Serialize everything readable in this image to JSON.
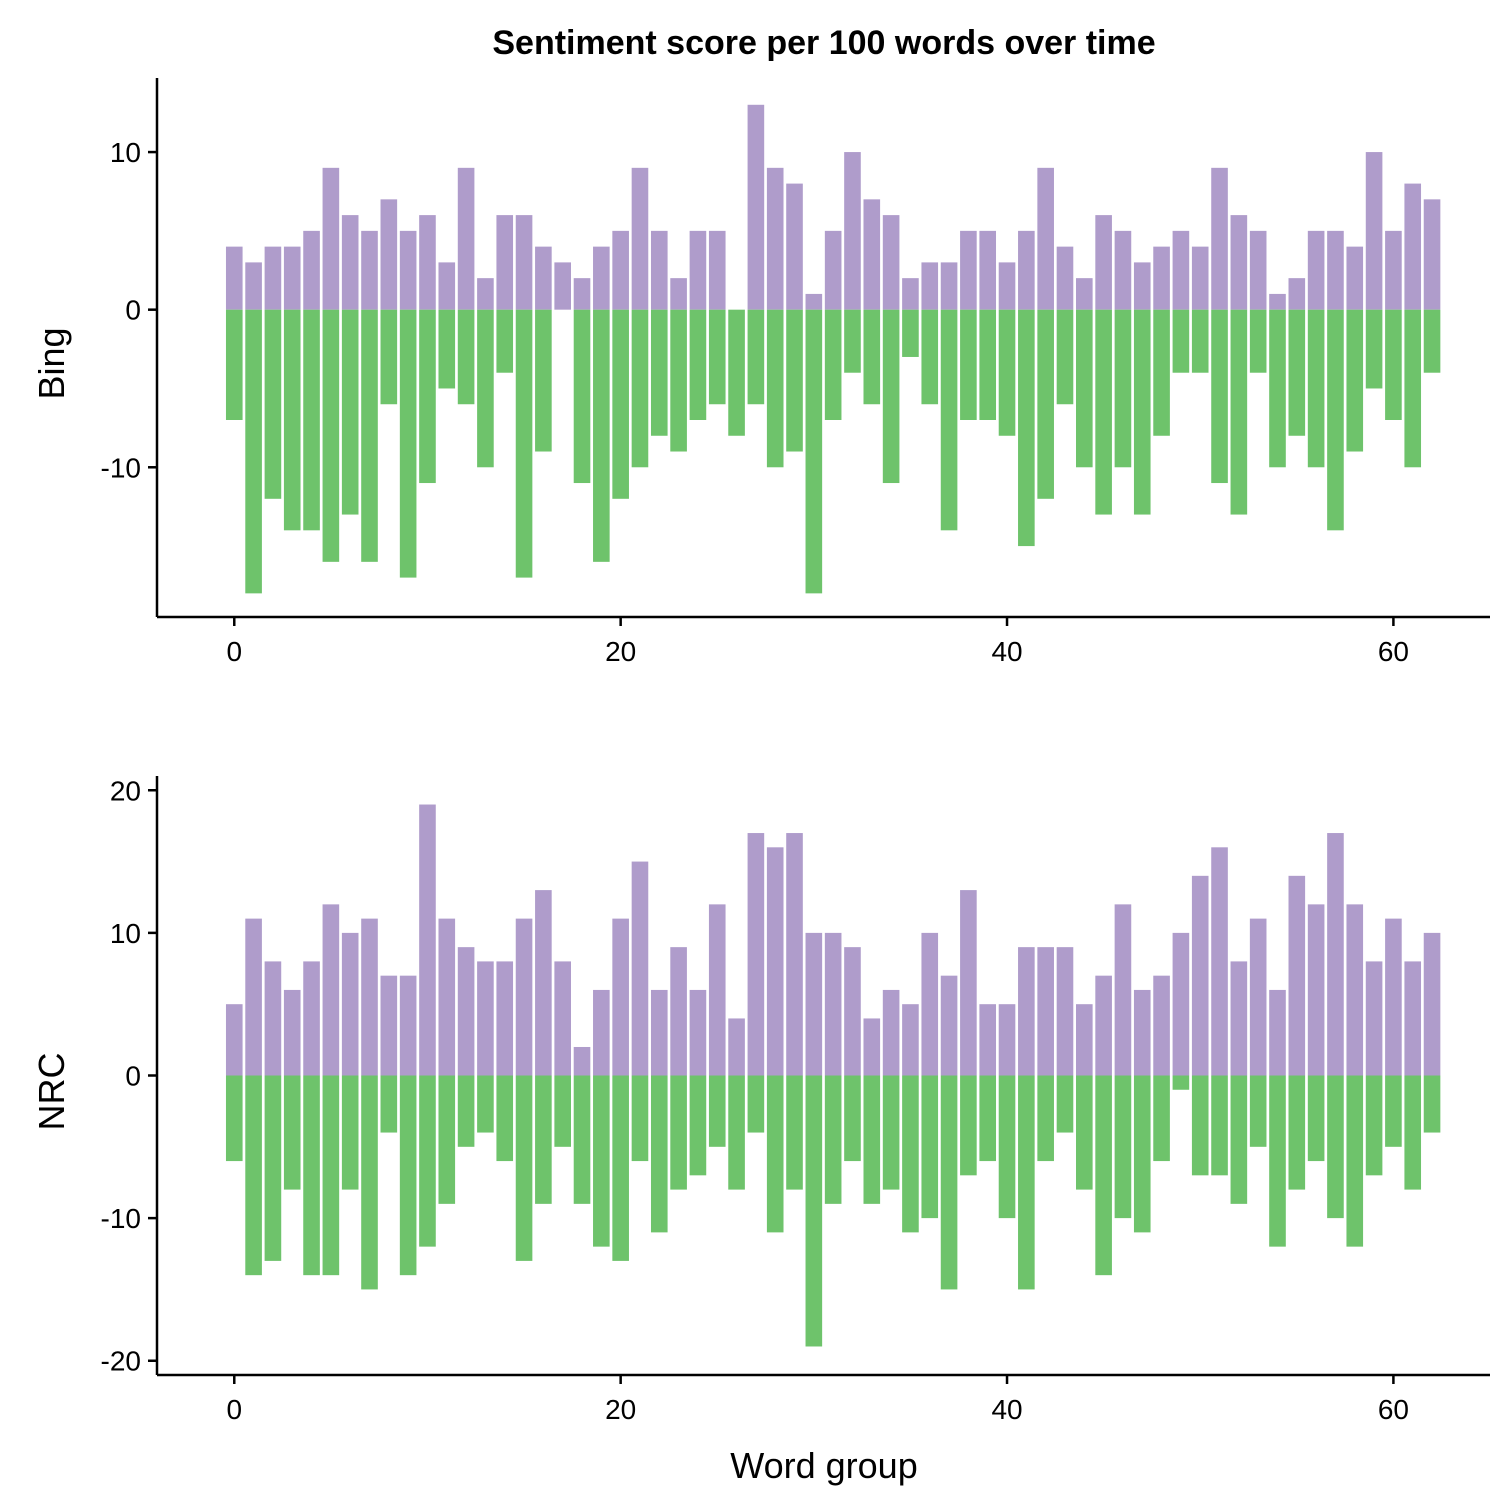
{
  "chart_data": {
    "type": "bar",
    "title": "Sentiment score per 100 words over time",
    "xlabel": "Word group",
    "colors": {
      "positive": "#af9ccb",
      "negative": "#6ec36b"
    },
    "xlim": [
      -4,
      65
    ],
    "xticks": [
      0,
      20,
      40,
      60
    ],
    "x": [
      0,
      1,
      2,
      3,
      4,
      5,
      6,
      7,
      8,
      9,
      10,
      11,
      12,
      13,
      14,
      15,
      16,
      17,
      18,
      19,
      20,
      21,
      22,
      23,
      24,
      25,
      26,
      27,
      28,
      29,
      30,
      31,
      32,
      33,
      34,
      35,
      36,
      37,
      38,
      39,
      40,
      41,
      42,
      43,
      44,
      45,
      46,
      47,
      48,
      49,
      50,
      51,
      52,
      53,
      54,
      55,
      56,
      57,
      58,
      59,
      60,
      61,
      62
    ],
    "panels": [
      {
        "ylabel": "Bing",
        "ylim": [
          -19.5,
          14.7
        ],
        "yticks": [
          10,
          0,
          -10
        ],
        "ytick_labels": [
          "10",
          "0",
          "-10"
        ],
        "series": [
          {
            "name": "positive",
            "values": [
              4,
              3,
              4,
              4,
              5,
              9,
              6,
              5,
              7,
              5,
              6,
              3,
              9,
              2,
              6,
              6,
              4,
              3,
              2,
              4,
              5,
              9,
              5,
              2,
              5,
              5,
              0,
              13,
              9,
              8,
              1,
              5,
              10,
              7,
              6,
              2,
              3,
              3,
              5,
              5,
              3,
              5,
              9,
              4,
              2,
              6,
              5,
              3,
              4,
              5,
              4,
              9,
              6,
              5,
              1,
              2,
              5,
              5,
              4,
              10,
              5,
              8,
              7
            ]
          },
          {
            "name": "negative",
            "values": [
              -7,
              -18,
              -12,
              -14,
              -14,
              -16,
              -13,
              -16,
              -6,
              -17,
              -11,
              -5,
              -6,
              -10,
              -4,
              -17,
              -9,
              0,
              -11,
              -16,
              -12,
              -10,
              -8,
              -9,
              -7,
              -6,
              -8,
              -6,
              -10,
              -9,
              -18,
              -7,
              -4,
              -6,
              -11,
              -3,
              -6,
              -14,
              -7,
              -7,
              -8,
              -15,
              -12,
              -6,
              -10,
              -13,
              -10,
              -13,
              -8,
              -4,
              -4,
              -11,
              -13,
              -4,
              -10,
              -8,
              -10,
              -14,
              -9,
              -5,
              -7,
              -10,
              -4
            ]
          }
        ]
      },
      {
        "ylabel": "NRC",
        "ylim": [
          -21,
          21
        ],
        "yticks": [
          20,
          10,
          0,
          -10,
          -20
        ],
        "ytick_labels": [
          "20",
          "10",
          "0",
          "-10",
          "-20"
        ],
        "series": [
          {
            "name": "positive",
            "values": [
              5,
              11,
              8,
              6,
              8,
              12,
              10,
              11,
              7,
              7,
              19,
              11,
              9,
              8,
              8,
              11,
              13,
              8,
              2,
              6,
              11,
              15,
              6,
              9,
              6,
              12,
              4,
              17,
              16,
              17,
              10,
              10,
              9,
              4,
              6,
              5,
              10,
              7,
              13,
              5,
              5,
              9,
              9,
              9,
              5,
              7,
              12,
              6,
              7,
              10,
              14,
              16,
              8,
              11,
              6,
              14,
              12,
              17,
              12,
              8,
              11,
              8,
              10
            ]
          },
          {
            "name": "negative",
            "values": [
              -6,
              -14,
              -13,
              -8,
              -14,
              -14,
              -8,
              -15,
              -4,
              -14,
              -12,
              -9,
              -5,
              -4,
              -6,
              -13,
              -9,
              -5,
              -9,
              -12,
              -13,
              -6,
              -11,
              -8,
              -7,
              -5,
              -8,
              -4,
              -11,
              -8,
              -19,
              -9,
              -6,
              -9,
              -8,
              -11,
              -10,
              -15,
              -7,
              -6,
              -10,
              -15,
              -6,
              -4,
              -8,
              -14,
              -10,
              -11,
              -6,
              -1,
              -7,
              -7,
              -9,
              -5,
              -12,
              -8,
              -6,
              -10,
              -12,
              -7,
              -5,
              -8,
              -4
            ]
          }
        ]
      }
    ]
  }
}
